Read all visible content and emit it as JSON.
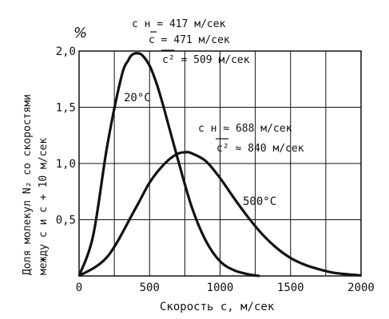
{
  "chart_data": {
    "type": "line",
    "xlabel": "Скорость  c, м/сек",
    "ylabel": "Доля молекул N₂ со скоростями",
    "ylabel2": "между  c и c + 10 м/сек",
    "yunit": "%",
    "xlim": [
      0,
      2000
    ],
    "ylim": [
      0,
      2.0
    ],
    "x_ticks": [
      "0",
      "500",
      "1000",
      "1500",
      "2000"
    ],
    "y_ticks": [
      "0,5",
      "1,0",
      "1,5",
      "2,0"
    ],
    "grid": true,
    "series": [
      {
        "name": "20°C",
        "x": [
          0,
          100,
          200,
          300,
          350,
          380,
          417,
          450,
          500,
          550,
          600,
          700,
          800,
          900,
          1000,
          1100,
          1200,
          1280
        ],
        "values": [
          0,
          0.36,
          1.16,
          1.77,
          1.92,
          1.97,
          1.98,
          1.96,
          1.87,
          1.71,
          1.5,
          1.04,
          0.61,
          0.31,
          0.13,
          0.05,
          0.015,
          0.0
        ]
      },
      {
        "name": "500°C",
        "x": [
          0,
          200,
          400,
          500,
          600,
          688,
          750,
          800,
          900,
          1000,
          1100,
          1200,
          1300,
          1400,
          1500,
          1600,
          1700,
          1800,
          1900,
          2000
        ],
        "values": [
          0,
          0.17,
          0.6,
          0.83,
          0.99,
          1.08,
          1.1,
          1.09,
          1.02,
          0.87,
          0.69,
          0.52,
          0.37,
          0.25,
          0.16,
          0.1,
          0.06,
          0.03,
          0.015,
          0.005
        ]
      }
    ],
    "annotations": {
      "curve1": {
        "label": "20°C",
        "vh": "c н = 417 м/сек",
        "vmean": "c = 471 м/сек",
        "vrms": "c² = 509 м/сек"
      },
      "curve2": {
        "label": "500°C",
        "vh": "c н ≈ 688 м/сек",
        "vrms": "c² ≈ 840 м/сек"
      }
    }
  }
}
